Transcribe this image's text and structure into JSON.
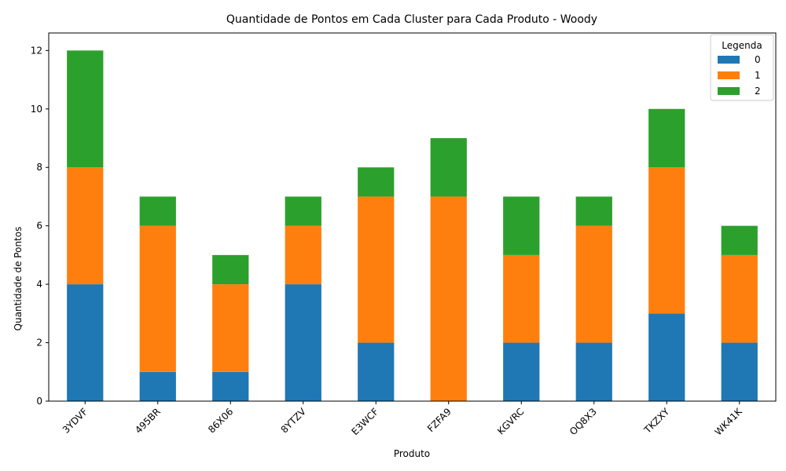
{
  "chart_data": {
    "type": "bar",
    "stacked": true,
    "title": "Quantidade de Pontos em Cada Cluster para Cada Produto - Woody",
    "xlabel": "Produto",
    "ylabel": "Quantidade de Pontos",
    "categories": [
      "3YDVF",
      "495BR",
      "86X06",
      "8YTZV",
      "E3WCF",
      "FZFA9",
      "KGVRC",
      "OQ8X3",
      "TKZXY",
      "WK41K"
    ],
    "series": [
      {
        "name": "0",
        "color": "#1f77b4",
        "values": [
          4,
          1,
          1,
          4,
          2,
          0,
          2,
          2,
          3,
          2
        ]
      },
      {
        "name": "1",
        "color": "#ff7f0e",
        "values": [
          4,
          5,
          3,
          2,
          5,
          7,
          3,
          4,
          5,
          3
        ]
      },
      {
        "name": "2",
        "color": "#2ca02c",
        "values": [
          4,
          1,
          1,
          1,
          1,
          2,
          2,
          1,
          2,
          1
        ]
      }
    ],
    "ylim": [
      0,
      12.6
    ],
    "yticks": [
      0,
      2,
      4,
      6,
      8,
      10,
      12
    ],
    "grid": false,
    "legend": {
      "title": "Legenda",
      "position": "top-right"
    }
  }
}
